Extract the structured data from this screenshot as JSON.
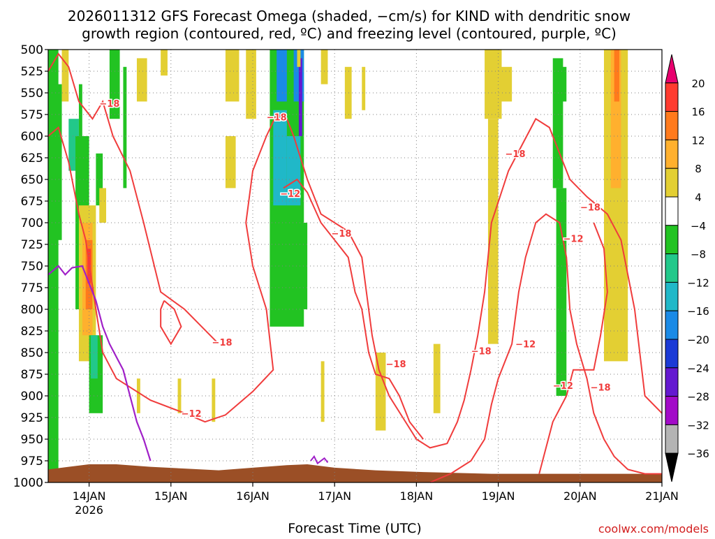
{
  "chart_data": {
    "type": "heatmap",
    "title_lines": [
      "2026011312 GFS Forecast Omega (shaded, −cm/s) for KIND with dendritic snow",
      "growth region (contoured, red, ºC) and freezing level (contoured, purple, ºC)"
    ],
    "xlabel": "Forecast Time (UTC)",
    "credit": "coolwx.com/models",
    "x_ticks": [
      {
        "label": "14JAN",
        "sub": "2026",
        "hours": 12
      },
      {
        "label": "15JAN",
        "sub": "",
        "hours": 36
      },
      {
        "label": "16JAN",
        "sub": "",
        "hours": 60
      },
      {
        "label": "17JAN",
        "sub": "",
        "hours": 84
      },
      {
        "label": "18JAN",
        "sub": "",
        "hours": 108
      },
      {
        "label": "19JAN",
        "sub": "",
        "hours": 132
      },
      {
        "label": "20JAN",
        "sub": "",
        "hours": 156
      },
      {
        "label": "21JAN",
        "sub": "",
        "hours": 180
      }
    ],
    "x_range_hours": [
      0,
      180
    ],
    "y_levels": [
      "500",
      "525",
      "550",
      "575",
      "600",
      "625",
      "650",
      "675",
      "700",
      "725",
      "750",
      "775",
      "800",
      "825",
      "850",
      "875",
      "900",
      "925",
      "950",
      "975",
      "1000"
    ],
    "y_range_hpa": [
      500,
      1000
    ],
    "colorbar": {
      "labels": [
        "20",
        "16",
        "12",
        "8",
        "4",
        "−4",
        "−8",
        "−12",
        "−16",
        "−20",
        "−24",
        "−28",
        "−32",
        "−36"
      ],
      "colors": [
        "#e8006e",
        "#ff3b2f",
        "#ff7a1c",
        "#ffb02e",
        "#e3cf33",
        "#ffffff",
        "#22c322",
        "#22c88a",
        "#20b8c8",
        "#1a8ae6",
        "#1b3ad6",
        "#6418d0",
        "#a20ac8",
        "#b4b4b4",
        "#000000"
      ]
    },
    "contour_labels": {
      "dgz": [
        {
          "text": "−18",
          "hours": 18,
          "hpa": 562
        },
        {
          "text": "−12",
          "hours": 42,
          "hpa": 920
        },
        {
          "text": "−18",
          "hours": 51,
          "hpa": 838
        },
        {
          "text": "−18",
          "hours": 67,
          "hpa": 578
        },
        {
          "text": "−12",
          "hours": 71,
          "hpa": 666
        },
        {
          "text": "−18",
          "hours": 86,
          "hpa": 712
        },
        {
          "text": "−18",
          "hours": 102,
          "hpa": 863
        },
        {
          "text": "−18",
          "hours": 127,
          "hpa": 848
        },
        {
          "text": "−18",
          "hours": 137,
          "hpa": 620
        },
        {
          "text": "−12",
          "hours": 140,
          "hpa": 840
        },
        {
          "text": "−12",
          "hours": 151,
          "hpa": 888
        },
        {
          "text": "−12",
          "hours": 154,
          "hpa": 718
        },
        {
          "text": "−18",
          "hours": 159,
          "hpa": 682
        },
        {
          "text": "−18",
          "hours": 162,
          "hpa": 890
        }
      ]
    },
    "colors": {
      "dgz_contour": "#f03c3c",
      "freezing_level": "#a020c8",
      "terrain": "#9b4f26",
      "grid": "#808080"
    }
  }
}
